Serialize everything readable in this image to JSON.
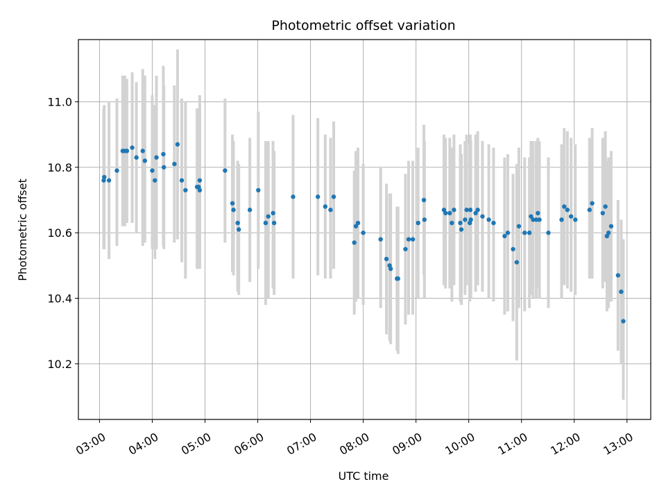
{
  "chart_data": {
    "type": "scatter",
    "title": "Photometric offset variation",
    "xlabel": "UTC time",
    "ylabel": "Photometric offset",
    "xlim": [
      2.6,
      13.45
    ],
    "ylim": [
      10.03,
      11.19
    ],
    "grid": true,
    "x_ticks": [
      3,
      4,
      5,
      6,
      7,
      8,
      9,
      10,
      11,
      12,
      13
    ],
    "x_tick_labels": [
      "03:00",
      "04:00",
      "05:00",
      "06:00",
      "07:00",
      "08:00",
      "09:00",
      "10:00",
      "11:00",
      "12:00",
      "13:00"
    ],
    "y_ticks": [
      10.2,
      10.4,
      10.6,
      10.8,
      11.0
    ],
    "y_tick_labels": [
      "10.2",
      "10.4",
      "10.6",
      "10.8",
      "11.0"
    ],
    "colors": {
      "point": "#1f77b4",
      "errorbar": "#d3d3d3",
      "grid": "#b0b0b0"
    },
    "series": [
      {
        "name": "offset",
        "x": [
          3.08,
          3.09,
          3.18,
          3.33,
          3.44,
          3.48,
          3.52,
          3.62,
          3.7,
          3.82,
          3.86,
          4.0,
          4.05,
          4.08,
          4.21,
          4.22,
          4.42,
          4.48,
          4.56,
          4.63,
          4.85,
          4.88,
          4.9,
          4.9,
          5.38,
          5.52,
          5.54,
          5.62,
          5.64,
          5.85,
          6.01,
          6.15,
          6.2,
          6.29,
          6.31,
          6.67,
          7.14,
          7.28,
          7.38,
          7.44,
          7.83,
          7.86,
          7.9,
          8.0,
          8.33,
          8.44,
          8.5,
          8.52,
          8.64,
          8.66,
          8.8,
          8.86,
          8.94,
          9.04,
          9.15,
          9.16,
          9.53,
          9.56,
          9.64,
          9.68,
          9.72,
          9.84,
          9.86,
          9.93,
          9.96,
          10.02,
          10.03,
          10.04,
          10.13,
          10.17,
          10.26,
          10.38,
          10.47,
          10.68,
          10.74,
          10.84,
          10.91,
          10.95,
          11.06,
          11.15,
          11.18,
          11.22,
          11.28,
          11.31,
          11.34,
          11.51,
          11.76,
          11.81,
          11.87,
          11.94,
          12.02,
          12.29,
          12.34,
          12.54,
          12.59,
          12.62,
          12.65,
          12.7,
          12.83,
          12.89,
          12.93
        ],
        "y": [
          10.76,
          10.77,
          10.76,
          10.79,
          10.85,
          10.85,
          10.85,
          10.86,
          10.83,
          10.85,
          10.82,
          10.79,
          10.76,
          10.83,
          10.84,
          10.8,
          10.81,
          10.87,
          10.76,
          10.73,
          10.74,
          10.74,
          10.73,
          10.76,
          10.79,
          10.69,
          10.67,
          10.63,
          10.61,
          10.67,
          10.73,
          10.63,
          10.65,
          10.66,
          10.63,
          10.71,
          10.71,
          10.68,
          10.67,
          10.71,
          10.57,
          10.62,
          10.63,
          10.6,
          10.58,
          10.52,
          10.5,
          10.49,
          10.46,
          10.46,
          10.55,
          10.58,
          10.58,
          10.63,
          10.7,
          10.64,
          10.67,
          10.66,
          10.66,
          10.63,
          10.67,
          10.63,
          10.61,
          10.64,
          10.67,
          10.63,
          10.67,
          10.64,
          10.66,
          10.67,
          10.65,
          10.64,
          10.63,
          10.59,
          10.6,
          10.55,
          10.51,
          10.62,
          10.6,
          10.6,
          10.65,
          10.64,
          10.64,
          10.66,
          10.64,
          10.6,
          10.64,
          10.68,
          10.67,
          10.65,
          10.64,
          10.67,
          10.69,
          10.66,
          10.68,
          10.59,
          10.6,
          10.62,
          10.47,
          10.42,
          10.33
        ],
        "yerr_low": [
          10.55,
          10.55,
          10.52,
          10.56,
          10.62,
          10.62,
          10.63,
          10.63,
          10.6,
          10.56,
          10.57,
          10.55,
          10.52,
          10.55,
          10.56,
          10.55,
          10.57,
          10.58,
          10.51,
          10.46,
          10.49,
          10.49,
          10.5,
          10.49,
          10.57,
          10.48,
          10.47,
          10.42,
          10.41,
          10.45,
          10.49,
          10.38,
          10.4,
          10.43,
          10.41,
          10.46,
          10.47,
          10.46,
          10.46,
          10.49,
          10.35,
          10.39,
          10.4,
          10.38,
          10.37,
          10.29,
          10.27,
          10.26,
          10.24,
          10.23,
          10.32,
          10.35,
          10.35,
          10.4,
          10.47,
          10.4,
          10.44,
          10.43,
          10.43,
          10.39,
          10.44,
          10.39,
          10.38,
          10.41,
          10.44,
          10.39,
          10.44,
          10.4,
          10.42,
          10.44,
          10.42,
          10.4,
          10.39,
          10.35,
          10.36,
          10.33,
          10.21,
          10.37,
          10.36,
          10.37,
          10.41,
          10.4,
          10.4,
          10.43,
          10.4,
          10.37,
          10.4,
          10.44,
          10.43,
          10.42,
          10.41,
          10.46,
          10.46,
          10.43,
          10.45,
          10.36,
          10.37,
          10.39,
          10.24,
          10.2,
          10.09
        ],
        "yerr_high": [
          10.98,
          10.99,
          11.0,
          11.01,
          11.08,
          11.08,
          11.07,
          11.09,
          11.06,
          11.1,
          11.08,
          11.02,
          10.99,
          11.08,
          11.11,
          11.05,
          11.05,
          11.16,
          11.01,
          11.0,
          10.98,
          10.98,
          10.96,
          11.02,
          11.01,
          10.9,
          10.88,
          10.82,
          10.81,
          10.89,
          10.97,
          10.88,
          10.88,
          10.88,
          10.85,
          10.96,
          10.95,
          10.9,
          10.89,
          10.94,
          10.79,
          10.85,
          10.86,
          10.81,
          10.8,
          10.75,
          10.72,
          10.72,
          10.68,
          10.68,
          10.78,
          10.82,
          10.82,
          10.86,
          10.93,
          10.88,
          10.9,
          10.89,
          10.89,
          10.86,
          10.9,
          10.87,
          10.84,
          10.88,
          10.9,
          10.87,
          10.9,
          10.88,
          10.9,
          10.91,
          10.88,
          10.87,
          10.86,
          10.83,
          10.84,
          10.78,
          10.81,
          10.86,
          10.83,
          10.83,
          10.88,
          10.88,
          10.88,
          10.89,
          10.88,
          10.83,
          10.87,
          10.92,
          10.91,
          10.89,
          10.87,
          10.89,
          10.92,
          10.89,
          10.91,
          10.82,
          10.83,
          10.85,
          10.7,
          10.64,
          10.58
        ]
      }
    ]
  }
}
